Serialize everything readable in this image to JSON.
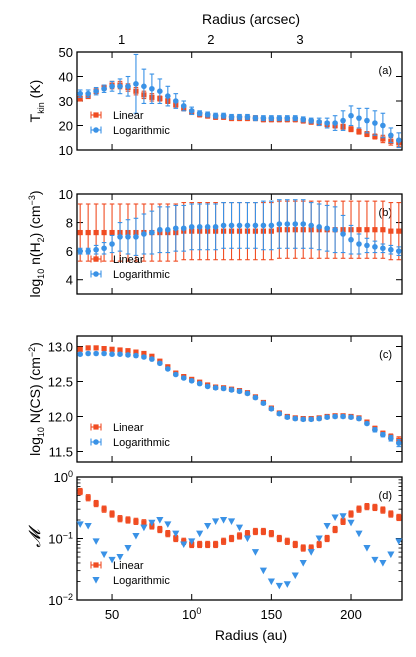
{
  "colors": {
    "linear": "#f04c22",
    "logarithmic": "#3a92e6"
  },
  "top_axis": {
    "label": "Radius    (arcsec)",
    "ticks": [
      "1",
      "2",
      "3"
    ],
    "tick_values_au": [
      56,
      112,
      168
    ]
  },
  "x_axis": {
    "label": "Radius     (au)",
    "ticks": [
      "50",
      "100",
      "150",
      "200"
    ],
    "xlim": [
      28,
      232
    ]
  },
  "chart_data": [
    {
      "type": "scatter",
      "panel": "(a)",
      "ylabel": "T_kin   (K)",
      "ylim": [
        10,
        50
      ],
      "yticks": [
        "10",
        "20",
        "30",
        "40",
        "50"
      ],
      "legend": "bottom-left",
      "series": [
        {
          "name": "Linear",
          "color": "#f04c22",
          "marker": "square",
          "x": [
            30,
            35,
            40,
            45,
            50,
            55,
            60,
            65,
            70,
            75,
            80,
            85,
            90,
            95,
            100,
            105,
            110,
            115,
            120,
            125,
            130,
            135,
            140,
            145,
            150,
            155,
            160,
            165,
            170,
            175,
            180,
            185,
            190,
            195,
            200,
            205,
            210,
            215,
            220,
            225,
            230
          ],
          "y": [
            31,
            32,
            34,
            35.5,
            36.5,
            36.5,
            35.5,
            34,
            32.5,
            31.5,
            31,
            30,
            28.5,
            27,
            25.5,
            24.5,
            24,
            23.5,
            23.5,
            23,
            23,
            23,
            23,
            22.5,
            22.5,
            22.5,
            22.5,
            22.5,
            22,
            21.5,
            21,
            20.5,
            20,
            19.5,
            18.5,
            17.5,
            16.5,
            15.5,
            14.5,
            13.5,
            13
          ],
          "err": [
            1,
            1,
            1,
            1,
            1.5,
            1.5,
            1.5,
            1.5,
            1.5,
            1.5,
            1,
            1,
            1,
            1,
            1,
            1,
            1,
            1,
            1,
            1,
            1,
            1,
            1,
            1,
            1,
            1,
            1,
            1,
            1,
            1,
            1,
            1,
            1,
            1,
            1,
            1,
            1,
            1,
            1.5,
            1.5,
            1.5
          ]
        },
        {
          "name": "Logarithmic",
          "color": "#3a92e6",
          "marker": "circle",
          "x": [
            30,
            35,
            40,
            45,
            50,
            55,
            60,
            65,
            70,
            75,
            80,
            85,
            90,
            95,
            100,
            105,
            110,
            115,
            120,
            125,
            130,
            135,
            140,
            145,
            150,
            155,
            160,
            165,
            170,
            175,
            180,
            185,
            190,
            195,
            200,
            205,
            210,
            215,
            220,
            225,
            230
          ],
          "y": [
            33,
            33,
            34,
            35,
            36,
            36,
            36,
            37,
            36,
            35,
            34,
            32,
            30,
            28,
            26,
            25,
            24.5,
            24,
            24,
            23.5,
            23.5,
            23.5,
            23,
            23,
            23,
            23,
            23,
            23,
            22.5,
            22,
            21.5,
            21,
            21,
            22,
            24,
            23,
            22,
            21,
            20,
            16,
            14
          ],
          "err": [
            1.5,
            1.5,
            1.5,
            1.5,
            2,
            3,
            4,
            12,
            7,
            6,
            5,
            4,
            3,
            2,
            1.5,
            1,
            1,
            1,
            1,
            1,
            1,
            1,
            1,
            1,
            1,
            1,
            1,
            1,
            1,
            1,
            1.5,
            2,
            3,
            4,
            4,
            4,
            5,
            5,
            5,
            3,
            3
          ]
        }
      ]
    },
    {
      "type": "scatter",
      "panel": "(b)",
      "ylabel": "log10 n(H2)   (cm−3)",
      "ylim": [
        3,
        10
      ],
      "yticks": [
        "4",
        "6",
        "8",
        "10"
      ],
      "legend": "bottom-left",
      "series": [
        {
          "name": "Linear",
          "color": "#f04c22",
          "marker": "square",
          "x": [
            30,
            35,
            40,
            45,
            50,
            55,
            60,
            65,
            70,
            75,
            80,
            85,
            90,
            95,
            100,
            105,
            110,
            115,
            120,
            125,
            130,
            135,
            140,
            145,
            150,
            155,
            160,
            165,
            170,
            175,
            180,
            185,
            190,
            195,
            200,
            205,
            210,
            215,
            220,
            225,
            230
          ],
          "y": [
            7.3,
            7.3,
            7.3,
            7.3,
            7.3,
            7.3,
            7.3,
            7.3,
            7.3,
            7.3,
            7.3,
            7.3,
            7.3,
            7.4,
            7.4,
            7.4,
            7.4,
            7.4,
            7.4,
            7.4,
            7.4,
            7.4,
            7.4,
            7.4,
            7.4,
            7.5,
            7.5,
            7.5,
            7.5,
            7.5,
            7.5,
            7.5,
            7.5,
            7.5,
            7.5,
            7.5,
            7.5,
            7.5,
            7.5,
            7.4,
            7.4
          ],
          "err": [
            2,
            2,
            2,
            2,
            2,
            2,
            2,
            2,
            2,
            2,
            2,
            2,
            2,
            2,
            2,
            2,
            2,
            2,
            2,
            2,
            2,
            2,
            2,
            2,
            2,
            2,
            2,
            2,
            2,
            2,
            2,
            2,
            2,
            2,
            2,
            2,
            2,
            2,
            2,
            2,
            2
          ]
        },
        {
          "name": "Logarithmic",
          "color": "#3a92e6",
          "marker": "circle",
          "x": [
            30,
            35,
            40,
            45,
            50,
            55,
            60,
            65,
            70,
            75,
            80,
            85,
            90,
            95,
            100,
            105,
            110,
            115,
            120,
            125,
            130,
            135,
            140,
            145,
            150,
            155,
            160,
            165,
            170,
            175,
            180,
            185,
            190,
            195,
            200,
            205,
            210,
            215,
            220,
            225,
            230
          ],
          "y": [
            6,
            6,
            6.1,
            6.2,
            6.5,
            7,
            7,
            7,
            7.2,
            7.3,
            7.5,
            7.5,
            7.6,
            7.6,
            7.7,
            7.7,
            7.7,
            7.7,
            7.8,
            7.8,
            7.8,
            7.8,
            7.8,
            7.8,
            7.8,
            7.9,
            7.9,
            7.9,
            7.9,
            7.8,
            7.7,
            7.6,
            7.5,
            7.2,
            6.8,
            6.5,
            6.4,
            6.3,
            6.2,
            6.1,
            6
          ],
          "err": [
            0.2,
            0.2,
            0.3,
            0.4,
            0.6,
            1,
            1.2,
            1.3,
            1.4,
            1.5,
            1.6,
            1.6,
            1.6,
            1.6,
            1.6,
            1.6,
            1.6,
            1.6,
            1.6,
            1.6,
            1.6,
            1.6,
            1.6,
            1.7,
            1.7,
            1.7,
            1.7,
            1.7,
            1.7,
            1.6,
            1.6,
            1.6,
            1.6,
            1.3,
            1,
            0.7,
            0.5,
            0.4,
            0.3,
            0.3,
            0.3
          ]
        }
      ]
    },
    {
      "type": "scatter",
      "panel": "(c)",
      "ylabel": "log10 N(CS)   (cm−2)",
      "ylim": [
        11.35,
        13.15
      ],
      "yticks": [
        "11.5",
        "12.0",
        "12.5",
        "13.0"
      ],
      "legend": "bottom-left",
      "series": [
        {
          "name": "Linear",
          "color": "#f04c22",
          "marker": "square",
          "x": [
            30,
            35,
            40,
            45,
            50,
            55,
            60,
            65,
            70,
            75,
            80,
            85,
            90,
            95,
            100,
            105,
            110,
            115,
            120,
            125,
            130,
            135,
            140,
            145,
            150,
            155,
            160,
            165,
            170,
            175,
            180,
            185,
            190,
            195,
            200,
            205,
            210,
            215,
            220,
            225,
            230
          ],
          "y": [
            12.96,
            12.98,
            12.98,
            12.97,
            12.96,
            12.95,
            12.94,
            12.92,
            12.9,
            12.86,
            12.79,
            12.71,
            12.62,
            12.57,
            12.53,
            12.49,
            12.45,
            12.42,
            12.41,
            12.39,
            12.37,
            12.34,
            12.28,
            12.2,
            12.12,
            12.05,
            12,
            11.98,
            11.97,
            11.97,
            11.98,
            12,
            12.01,
            12.01,
            12,
            11.98,
            11.92,
            11.83,
            11.76,
            11.71,
            11.66
          ],
          "err": [
            0.02,
            0.02,
            0.02,
            0.02,
            0.02,
            0.02,
            0.02,
            0.02,
            0.02,
            0.02,
            0.02,
            0.02,
            0.02,
            0.02,
            0.02,
            0.02,
            0.02,
            0.02,
            0.02,
            0.02,
            0.02,
            0.02,
            0.02,
            0.02,
            0.02,
            0.02,
            0.02,
            0.02,
            0.02,
            0.02,
            0.02,
            0.02,
            0.02,
            0.02,
            0.02,
            0.02,
            0.02,
            0.03,
            0.03,
            0.04,
            0.05
          ]
        },
        {
          "name": "Logarithmic",
          "color": "#3a92e6",
          "marker": "circle",
          "x": [
            30,
            35,
            40,
            45,
            50,
            55,
            60,
            65,
            70,
            75,
            80,
            85,
            90,
            95,
            100,
            105,
            110,
            115,
            120,
            125,
            130,
            135,
            140,
            145,
            150,
            155,
            160,
            165,
            170,
            175,
            180,
            185,
            190,
            195,
            200,
            205,
            210,
            215,
            220,
            225,
            230
          ],
          "y": [
            12.89,
            12.9,
            12.9,
            12.9,
            12.89,
            12.89,
            12.88,
            12.87,
            12.85,
            12.82,
            12.76,
            12.68,
            12.6,
            12.55,
            12.51,
            12.47,
            12.43,
            12.41,
            12.4,
            12.38,
            12.36,
            12.33,
            12.27,
            12.19,
            12.11,
            12.04,
            11.99,
            11.97,
            11.96,
            11.96,
            11.97,
            11.99,
            12,
            12,
            11.99,
            11.97,
            11.9,
            11.81,
            11.74,
            11.69,
            11.62
          ],
          "err": [
            0.02,
            0.02,
            0.02,
            0.02,
            0.02,
            0.02,
            0.02,
            0.02,
            0.02,
            0.02,
            0.02,
            0.02,
            0.02,
            0.02,
            0.02,
            0.02,
            0.02,
            0.02,
            0.02,
            0.02,
            0.02,
            0.02,
            0.02,
            0.02,
            0.02,
            0.02,
            0.02,
            0.02,
            0.02,
            0.02,
            0.02,
            0.02,
            0.02,
            0.02,
            0.02,
            0.02,
            0.02,
            0.03,
            0.03,
            0.04,
            0.05
          ]
        }
      ]
    },
    {
      "type": "scatter",
      "panel": "(d)",
      "ylabel": "𝓜",
      "yscale": "log",
      "ylim": [
        0.01,
        1
      ],
      "yticks": [
        "10−2",
        "10−1",
        "100"
      ],
      "legend": "bottom-left",
      "series": [
        {
          "name": "Linear",
          "color": "#f04c22",
          "marker": "square",
          "x": [
            30,
            35,
            40,
            45,
            50,
            55,
            60,
            65,
            70,
            75,
            80,
            85,
            90,
            95,
            100,
            105,
            110,
            115,
            120,
            125,
            130,
            135,
            140,
            145,
            150,
            155,
            160,
            165,
            170,
            175,
            180,
            185,
            190,
            195,
            200,
            205,
            210,
            215,
            220,
            225,
            230
          ],
          "y": [
            0.58,
            0.46,
            0.37,
            0.3,
            0.25,
            0.21,
            0.2,
            0.19,
            0.18,
            0.16,
            0.14,
            0.12,
            0.1,
            0.09,
            0.08,
            0.08,
            0.08,
            0.08,
            0.09,
            0.1,
            0.11,
            0.12,
            0.13,
            0.13,
            0.12,
            0.1,
            0.09,
            0.08,
            0.07,
            0.07,
            0.08,
            0.1,
            0.14,
            0.19,
            0.25,
            0.3,
            0.33,
            0.32,
            0.29,
            0.25,
            0.22
          ],
          "err": [
            0.05,
            0.05,
            0.05,
            0.05,
            0.05,
            0.05,
            0.05,
            0.05,
            0.05,
            0.05,
            0.05,
            0.05,
            0.05,
            0.05,
            0.05,
            0.05,
            0.05,
            0.05,
            0.05,
            0.05,
            0.05,
            0.05,
            0.05,
            0.05,
            0.05,
            0.05,
            0.05,
            0.05,
            0.05,
            0.05,
            0.05,
            0.05,
            0.05,
            0.05,
            0.05,
            0.05,
            0.05,
            0.05,
            0.05,
            0.05,
            0.05
          ]
        },
        {
          "name": "Logarithmic",
          "color": "#3a92e6",
          "marker": "triangle-down",
          "x": [
            30,
            35,
            40,
            45,
            50,
            55,
            60,
            65,
            70,
            75,
            80,
            85,
            90,
            95,
            100,
            105,
            110,
            115,
            120,
            125,
            130,
            135,
            140,
            145,
            150,
            155,
            160,
            165,
            170,
            175,
            180,
            185,
            190,
            195,
            200,
            205,
            210,
            215,
            220,
            225,
            230
          ],
          "y": [
            0.17,
            0.16,
            0.09,
            0.055,
            0.045,
            0.05,
            0.07,
            0.11,
            0.15,
            0.18,
            0.2,
            0.17,
            0.12,
            0.08,
            0.09,
            0.12,
            0.16,
            0.19,
            0.2,
            0.19,
            0.15,
            0.1,
            0.06,
            0.03,
            0.02,
            0.017,
            0.018,
            0.025,
            0.04,
            0.06,
            0.1,
            0.16,
            0.22,
            0.23,
            0.18,
            0.12,
            0.07,
            0.045,
            0.04,
            0.055,
            0.09
          ]
        }
      ]
    }
  ]
}
